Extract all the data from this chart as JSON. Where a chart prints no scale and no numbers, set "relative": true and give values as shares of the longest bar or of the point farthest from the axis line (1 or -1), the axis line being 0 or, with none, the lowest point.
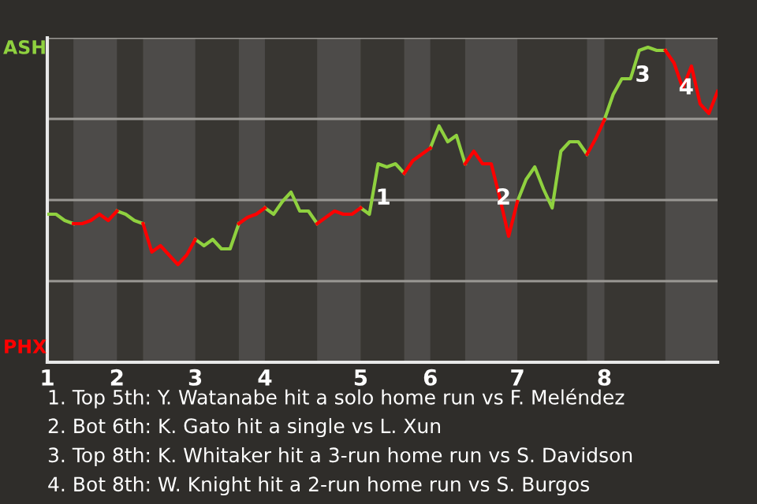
{
  "chart_data": {
    "type": "line",
    "relative": true,
    "categories": [
      "1",
      null,
      null,
      null,
      null,
      null,
      null,
      null,
      "2",
      null,
      null,
      null,
      null,
      null,
      null,
      null,
      null,
      "3",
      null,
      null,
      null,
      null,
      null,
      null,
      null,
      "4",
      null,
      null,
      null,
      null,
      null,
      null,
      null,
      null,
      null,
      null,
      "5",
      null,
      null,
      null,
      null,
      null,
      null,
      null,
      "6",
      null,
      null,
      null,
      null,
      null,
      null,
      null,
      null,
      null,
      "7",
      null,
      null,
      null,
      null,
      null,
      null,
      null,
      null,
      null,
      "8",
      null,
      null,
      null,
      null,
      null,
      null,
      null,
      null,
      null,
      null,
      null,
      null,
      null
    ],
    "series": [
      {
        "color": "#8fd13f",
        "values": [
          0.47,
          0.47,
          0.45,
          0.44,
          null,
          null,
          null,
          null,
          0.48,
          0.47,
          0.45,
          0.44,
          null,
          null,
          null,
          null,
          null,
          0.39,
          0.37,
          0.39,
          0.36,
          0.36,
          0.44,
          null,
          null,
          0.49,
          0.47,
          0.51,
          0.54,
          0.48,
          0.48,
          0.44,
          null,
          null,
          null,
          null,
          0.49,
          0.47,
          0.63,
          0.62,
          0.63,
          0.6,
          null,
          null,
          0.68,
          0.75,
          0.7,
          0.72,
          0.63,
          null,
          null,
          null,
          null,
          null,
          0.51,
          0.58,
          0.62,
          0.55,
          0.49,
          0.67,
          0.7,
          0.7,
          0.66,
          null,
          0.77,
          0.85,
          0.9,
          0.9,
          0.99,
          1,
          0.99,
          0.99,
          null,
          null,
          null,
          null,
          null,
          null
        ]
      },
      {
        "color": "#ff0000",
        "values": [
          null,
          null,
          null,
          0.44,
          0.44,
          0.45,
          0.47,
          0.45,
          0.48,
          null,
          null,
          0.44,
          0.35,
          0.37,
          0.34,
          0.31,
          0.34,
          0.39,
          null,
          null,
          null,
          null,
          0.44,
          0.46,
          0.47,
          0.49,
          null,
          null,
          null,
          null,
          null,
          0.44,
          0.46,
          0.48,
          0.47,
          0.47,
          0.49,
          null,
          null,
          null,
          null,
          0.6,
          0.64,
          0.66,
          0.68,
          null,
          null,
          null,
          0.63,
          0.67,
          0.63,
          0.63,
          0.52,
          0.4,
          0.51,
          null,
          null,
          null,
          null,
          null,
          null,
          null,
          0.66,
          0.71,
          0.77,
          null,
          null,
          null,
          null,
          null,
          null,
          0.99,
          0.95,
          0.87,
          0.94,
          0.82,
          0.79,
          0.86
        ]
      }
    ],
    "grid": "y",
    "annotations": [
      "ASH",
      "PHX",
      "1",
      "2",
      "3",
      "4",
      "1. Top 5th: Y. Watanabe hit a solo home run vs F. Meléndez",
      "2. Bot 6th: K. Gato hit a single vs L. Xun",
      "3. Top 8th: K. Whitaker hit a 3-run home run vs S. Davidson",
      "4. Bot 8th: W. Knight hit a 2-run home run vs S. Burgos"
    ]
  }
}
